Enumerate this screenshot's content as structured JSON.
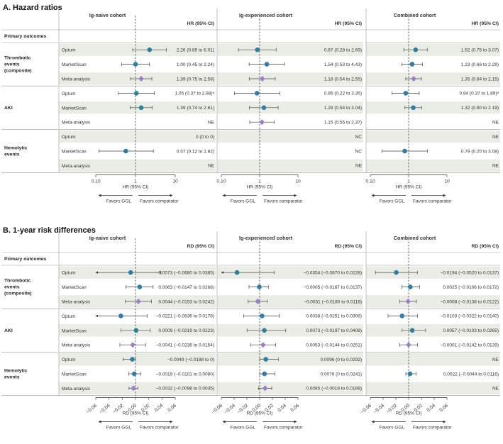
{
  "colors": {
    "circle": "#2f7fa3",
    "diamond": "#9b7fc7",
    "band": "#e9ede6",
    "ci": "#444444"
  },
  "chart_data": [
    {
      "type": "forest",
      "title": "A.  Hazard ratios",
      "scale": "log",
      "xlabel": "HR (95% CI)",
      "col_header": "HR (95% CI)",
      "ticks": [
        0.1,
        1,
        10
      ],
      "tick_labels": [
        "0.10",
        "1",
        "10"
      ],
      "xlim": [
        0.1,
        10
      ],
      "reference": 1,
      "favors_left": "Favors GGL",
      "favors_right": "Favors comparator",
      "primary_label": "Primary outcomes",
      "groups": [
        {
          "label": "Thrombotic\nevents\n(composite)",
          "sources": [
            "Optum",
            "MarketScan",
            "Meta-analysis"
          ]
        },
        {
          "label": "AKI",
          "sources": [
            "Optum",
            "MarketScan",
            "Meta-analysis"
          ]
        },
        {
          "label": "Hemolytic\nevents",
          "sources": [
            "Optum",
            "MarketScan",
            "Meta-analysis"
          ]
        }
      ],
      "cohorts": [
        {
          "name": "Ig-naive cohort",
          "rows": [
            {
              "est": 2.26,
              "lo": 0.85,
              "hi": 6.01,
              "text": "2.26 (0.85 to 6.01)",
              "marker": "circle"
            },
            {
              "est": 1.0,
              "lo": 0.45,
              "hi": 2.24,
              "text": "1.00 (0.45 to 2.24)",
              "marker": "circle"
            },
            {
              "est": 1.39,
              "lo": 0.75,
              "hi": 2.58,
              "text": "1.39 (0.75 to 2.58)",
              "marker": "diamond"
            },
            {
              "est": 1.05,
              "lo": 0.37,
              "hi": 2.98,
              "hi_arrow": false,
              "text": "1.05 (0.37 to 2.98)ᵃ",
              "marker": "circle"
            },
            {
              "est": 1.39,
              "lo": 0.74,
              "hi": 2.61,
              "text": "1.39 (0.74 to 2.61)",
              "marker": "circle"
            },
            {
              "text": "NE"
            },
            {
              "text": "0 (0 to 0)"
            },
            {
              "est": 0.57,
              "lo": 0.12,
              "hi": 2.82,
              "text": "0.57 (0.12 to 2.82)",
              "marker": "circle"
            },
            {
              "text": "NE"
            }
          ]
        },
        {
          "name": "Ig-experienced cohort",
          "rows": [
            {
              "est": 0.87,
              "lo": 0.28,
              "hi": 2.69,
              "text": "0.87 (0.28 to 2.69)",
              "marker": "circle"
            },
            {
              "est": 1.54,
              "lo": 0.53,
              "hi": 4.43,
              "text": "1.54 (0.53 to 4.43)",
              "marker": "circle"
            },
            {
              "est": 1.18,
              "lo": 0.54,
              "hi": 2.55,
              "text": "1.18 (0.54 to 2.55)",
              "marker": "diamond"
            },
            {
              "est": 0.85,
              "lo": 0.22,
              "hi": 3.35,
              "text": "0.85 (0.22 to 3.35)",
              "marker": "circle"
            },
            {
              "est": 1.29,
              "lo": 0.54,
              "hi": 3.04,
              "text": "1.29 (0.54 to 3.04)",
              "marker": "circle"
            },
            {
              "est": 1.15,
              "lo": 0.55,
              "hi": 2.37,
              "text": "1.15 (0.55 to 2.37)",
              "marker": "diamond"
            },
            {
              "text": "NC"
            },
            {
              "text": "NC"
            },
            {
              "text": "NE"
            }
          ]
        },
        {
          "name": "Combined cohort",
          "rows": [
            {
              "est": 1.52,
              "lo": 0.75,
              "hi": 3.07,
              "text": "1.52 (0.75 to 3.07)",
              "marker": "circle"
            },
            {
              "est": 1.23,
              "lo": 0.66,
              "hi": 2.29,
              "text": "1.23 (0.66 to 2.29)",
              "marker": "circle"
            },
            {
              "est": 1.35,
              "lo": 0.84,
              "hi": 2.15,
              "text": "1.35 (0.84 to 2.15)",
              "marker": "diamond"
            },
            {
              "est": 0.84,
              "lo": 0.37,
              "hi": 1.89,
              "text": "0.84 (0.37 to 1.89)ᵃ",
              "marker": "circle"
            },
            {
              "est": 1.32,
              "lo": 0.8,
              "hi": 2.19,
              "text": "1.32 (0.80 to 2.19)",
              "marker": "circle"
            },
            {
              "text": "NE"
            },
            {
              "text": "NE"
            },
            {
              "est": 0.79,
              "lo": 0.2,
              "hi": 3.08,
              "text": "0.79 (0.20 to 3.08)",
              "marker": "circle"
            },
            {
              "text": "NE"
            }
          ]
        }
      ]
    },
    {
      "type": "forest",
      "title": "B.  1-year risk differences",
      "scale": "linear",
      "xlabel": "RD (95% CI)",
      "col_header": "RD (95% CI)",
      "ticks": [
        -0.06,
        -0.04,
        -0.02,
        0,
        0.02,
        0.04,
        0.06
      ],
      "tick_labels": [
        "−0.06",
        "−0.04",
        "−0.02",
        "0.00",
        "0.02",
        "0.04",
        "0.06"
      ],
      "xlim": [
        -0.06,
        0.06
      ],
      "reference": 0,
      "favors_left": "Favors GGL",
      "favors_right": "Favors comparator",
      "primary_label": "Primary outcomes",
      "groups": [
        {
          "label": "Thrombotic\nevents\n(composite)",
          "sources": [
            "Optum",
            "MarketScan",
            "Meta-analysis"
          ]
        },
        {
          "label": "AKI",
          "sources": [
            "Optum",
            "MarketScan",
            "Meta-analysis"
          ]
        },
        {
          "label": "Hemolytic\nevents",
          "sources": [
            "Optum",
            "MarketScan",
            "Meta-analysis"
          ]
        }
      ],
      "cohorts": [
        {
          "name": "Ig-naive cohort",
          "rows": [
            {
              "est": -0.0073,
              "lo": -0.068,
              "hi": 0.0385,
              "text": "−0.0073 (−0.0680 to 0.0385)",
              "marker": "circle"
            },
            {
              "est": 0.0063,
              "lo": -0.0147,
              "hi": 0.0266,
              "text": "0.0063 (−0.0147 to 0.0266)",
              "marker": "circle"
            },
            {
              "est": 0.0044,
              "lo": -0.0153,
              "hi": 0.0242,
              "text": "0.0044 (−0.0153 to 0.0242)",
              "marker": "diamond"
            },
            {
              "est": -0.0221,
              "lo": -0.0636,
              "hi": 0.0178,
              "text": "−0.0221 (−0.0636 to 0.0178)",
              "marker": "circle"
            },
            {
              "est": 0.0009,
              "lo": -0.0219,
              "hi": 0.0223,
              "text": "0.0009 (−0.0219 to 0.0223)",
              "marker": "circle"
            },
            {
              "est": -0.0041,
              "lo": -0.0236,
              "hi": 0.0154,
              "text": "−0.0041 (−0.0236 to 0.0154)",
              "marker": "diamond"
            },
            {
              "est": -0.0049,
              "lo": -0.0188,
              "hi": 0,
              "text": "−0.0049 (−0.0188 to 0)",
              "marker": "circle"
            },
            {
              "est": -0.0019,
              "lo": -0.0101,
              "hi": 0.008,
              "text": "−0.0019 (−0.0101 to 0.0080)",
              "marker": "circle"
            },
            {
              "est": -0.0032,
              "lo": -0.0098,
              "hi": 0.0035,
              "text": "−0.0032 (−0.0098 to 0.0035)",
              "marker": "diamond"
            }
          ]
        },
        {
          "name": "Ig-experienced cohort",
          "rows": [
            {
              "est": -0.0354,
              "lo": -0.087,
              "hi": 0.0228,
              "text": "−0.0354 (−0.0870 to 0.0228)",
              "marker": "circle"
            },
            {
              "est": -0.0005,
              "lo": -0.0167,
              "hi": 0.0137,
              "text": "−0.0005 (−0.0167 to 0.0137)",
              "marker": "circle"
            },
            {
              "est": -0.0031,
              "lo": -0.018,
              "hi": 0.0118,
              "text": "−0.0031 (−0.0180 to 0.0118)",
              "marker": "diamond"
            },
            {
              "est": 0.0038,
              "lo": -0.0251,
              "hi": 0.0306,
              "text": "0.0038 (−0.0251 to 0.0306)",
              "marker": "circle"
            },
            {
              "est": 0.0073,
              "lo": -0.0197,
              "hi": 0.0408,
              "text": "0.0073 (−0.0197 to 0.0408)",
              "marker": "circle"
            },
            {
              "est": 0.0053,
              "lo": -0.0144,
              "hi": 0.0251,
              "text": "0.0053 (−0.0144 to 0.0251)",
              "marker": "diamond"
            },
            {
              "est": 0.0096,
              "lo": 0,
              "hi": 0.0292,
              "text": "0.0096 (0 to 0.0292)",
              "marker": "circle"
            },
            {
              "est": 0.0076,
              "lo": 0,
              "hi": 0.0241,
              "text": "0.0076 (0 to 0.0241)",
              "marker": "circle"
            },
            {
              "est": 0.0085,
              "lo": -0.0019,
              "hi": 0.0189,
              "text": "0.0085 (−0.0019 to 0.0189)",
              "marker": "diamond"
            }
          ]
        },
        {
          "name": "Combined cohort",
          "rows": [
            {
              "est": -0.0194,
              "lo": -0.052,
              "hi": 0.0137,
              "text": "−0.0194 (−0.0520 to 0.0137)",
              "marker": "circle"
            },
            {
              "est": 0.0025,
              "lo": -0.0106,
              "hi": 0.0172,
              "text": "0.0025 (−0.0106 to 0.0172)",
              "marker": "circle"
            },
            {
              "est": -0.0008,
              "lo": -0.0138,
              "hi": 0.0122,
              "text": "−0.0008 (−0.0138 to 0.0122)",
              "marker": "diamond"
            },
            {
              "est": -0.0103,
              "lo": -0.0322,
              "hi": 0.014,
              "text": "−0.0103 (−0.0322 to 0.0140)",
              "marker": "circle"
            },
            {
              "est": 0.0057,
              "lo": -0.0103,
              "hi": 0.0265,
              "text": "0.0057 (−0.0103 to 0.0265)",
              "marker": "circle"
            },
            {
              "est": -0.0001,
              "lo": -0.0142,
              "hi": 0.0139,
              "text": "−0.0001 (−0.0142 to 0.0139)",
              "marker": "diamond"
            },
            {
              "text": "NE"
            },
            {
              "est": 0.0022,
              "lo": -0.0044,
              "hi": 0.0116,
              "text": "0.0022 (−0.0044 to 0.0116)",
              "marker": "circle"
            },
            {
              "text": "NE"
            }
          ]
        }
      ]
    }
  ]
}
